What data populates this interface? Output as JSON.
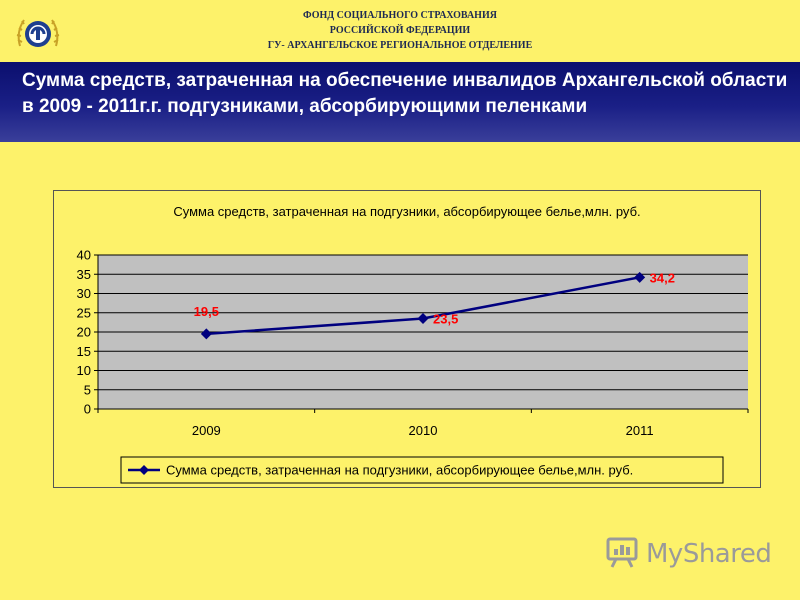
{
  "header": {
    "org_line1": "ФОНД СОЦИАЛЬНОГО СТРАХОВАНИЯ",
    "org_line2": "РОССИЙСКОЙ ФЕДЕРАЦИИ",
    "org_line3": "ГУ- АРХАНГЕЛЬСКОЕ РЕГИОНАЛЬНОЕ ОТДЕЛЕНИЕ",
    "logo_icon": "fss-emblem-icon"
  },
  "banner": {
    "title": "Сумма средств, затраченная на обеспечение инвалидов Архангельской области в 2009 - 2011г.г. подгузниками, абсорбирующими пеленками"
  },
  "colors": {
    "background": "#fdf26a",
    "banner": "#0b0f6e",
    "plot_area": "#c0c0c0",
    "series_line": "#00007f",
    "data_label": "#ff0000"
  },
  "chart_data": {
    "type": "line",
    "title": "Сумма средств, затраченная на подгузники, абсорбирующее белье,млн. руб.",
    "categories": [
      "2009",
      "2010",
      "2011"
    ],
    "series": [
      {
        "name": "Сумма средств, затраченная на подгузники, абсорбирующее белье,млн. руб.",
        "values": [
          19.5,
          23.5,
          34.2
        ],
        "labels": [
          "19,5",
          "23,5",
          "34,2"
        ],
        "marker": "diamond"
      }
    ],
    "y_ticks": [
      "0",
      "5",
      "10",
      "15",
      "20",
      "25",
      "30",
      "35",
      "40"
    ],
    "ylim": [
      0,
      40
    ],
    "grid": true,
    "legend": "bottom"
  },
  "watermark": {
    "text": "MyShared",
    "icon": "myshared-logo-icon"
  }
}
